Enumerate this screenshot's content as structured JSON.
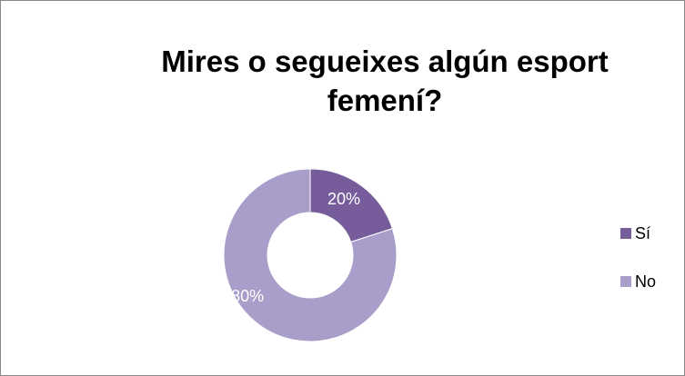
{
  "chart_data": {
    "type": "donut",
    "title": "Mires o segueixes algún esport femení?",
    "categories": [
      "Sí",
      "No"
    ],
    "values": [
      20,
      80
    ],
    "value_labels": [
      "20%",
      "80%"
    ],
    "colors": [
      "#775c9c",
      "#a99ec9"
    ],
    "legend": "right"
  }
}
